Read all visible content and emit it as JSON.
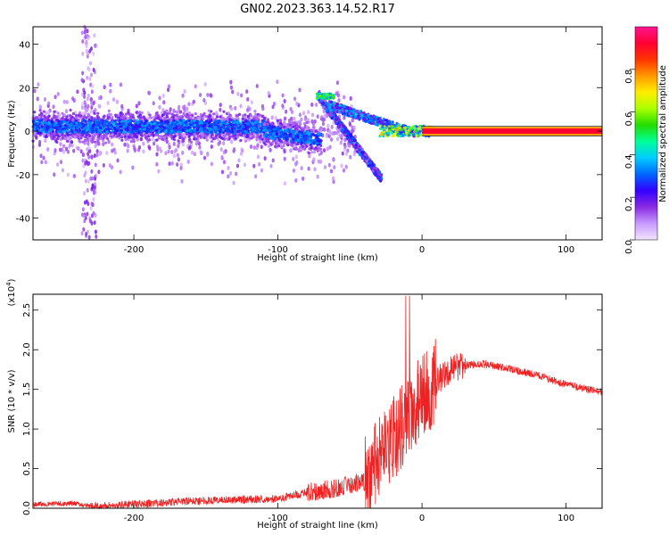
{
  "figure": {
    "title": "GN02.2023.363.14.52.R17"
  },
  "chart_data": [
    {
      "type": "heatmap",
      "xlabel": "Height of straight line (km)",
      "ylabel": "Frequency (Hz)",
      "xlim": [
        -270,
        125
      ],
      "ylim": [
        -50,
        48
      ],
      "xticks": [
        -200,
        -100,
        0,
        100
      ],
      "yticks": [
        -40,
        -20,
        0,
        20,
        40
      ],
      "colorbar": {
        "label": "Normalized spectral amplitude",
        "range": [
          0,
          1
        ],
        "ticks": [
          "0.0",
          "0.2",
          "0.4",
          "0.6",
          "0.8"
        ],
        "colors": [
          "#f2e4ff",
          "#c89aff",
          "#8a2be2",
          "#3300ff",
          "#0066ff",
          "#00ccff",
          "#00ff99",
          "#22dd00",
          "#aaff00",
          "#ffee00",
          "#ff9900",
          "#ff3300",
          "#ff0033",
          "#ff1493"
        ]
      },
      "features": [
        {
          "name": "main-band",
          "x": [
            -270,
            -60
          ],
          "freq": [
            0,
            0
          ],
          "amplitude": 0.25
        },
        {
          "name": "descending-branch",
          "x": [
            -70,
            -28
          ],
          "freq": [
            16,
            -22
          ],
          "amplitude": 0.3
        },
        {
          "name": "converging-band",
          "x": [
            -60,
            0
          ],
          "freq": [
            8,
            0
          ],
          "amplitude": 0.35
        },
        {
          "name": "stable-carrier",
          "x": [
            0,
            125
          ],
          "freq": [
            0,
            0
          ],
          "amplitude": 1.0
        },
        {
          "name": "vertical-spread",
          "x": [
            -232,
            -228
          ],
          "freq": [
            -48,
            48
          ],
          "amplitude": 0.1
        }
      ]
    },
    {
      "type": "line",
      "xlabel": "Height of straight line (km)",
      "ylabel": "SNR (10 * v/v)",
      "y_multiplier": "(x10",
      "y_multiplier_exp": "4",
      "xlim": [
        -270,
        125
      ],
      "ylim": [
        0,
        2.7
      ],
      "xticks": [
        -200,
        -100,
        0,
        100
      ],
      "yticks": [
        "0.0",
        "0.5",
        "1.0",
        "1.5",
        "2.0",
        "2.5"
      ],
      "series": [
        {
          "color": "#ee2222",
          "x": [
            -270,
            -240,
            -230,
            -200,
            -150,
            -100,
            -80,
            -60,
            -50,
            -40,
            -35,
            -30,
            -25,
            -20,
            -15,
            -10,
            -5,
            0,
            5,
            10,
            15,
            20,
            25,
            30,
            40,
            50,
            60,
            70,
            80,
            90,
            100,
            110,
            125
          ],
          "values": [
            0.05,
            0.06,
            0.02,
            0.05,
            0.1,
            0.12,
            0.2,
            0.25,
            0.3,
            0.35,
            0.5,
            0.6,
            0.7,
            0.9,
            1.0,
            1.15,
            1.3,
            1.4,
            1.5,
            1.6,
            1.68,
            1.75,
            1.78,
            1.8,
            1.82,
            1.8,
            1.76,
            1.72,
            1.68,
            1.62,
            1.56,
            1.52,
            1.46
          ]
        }
      ]
    }
  ]
}
